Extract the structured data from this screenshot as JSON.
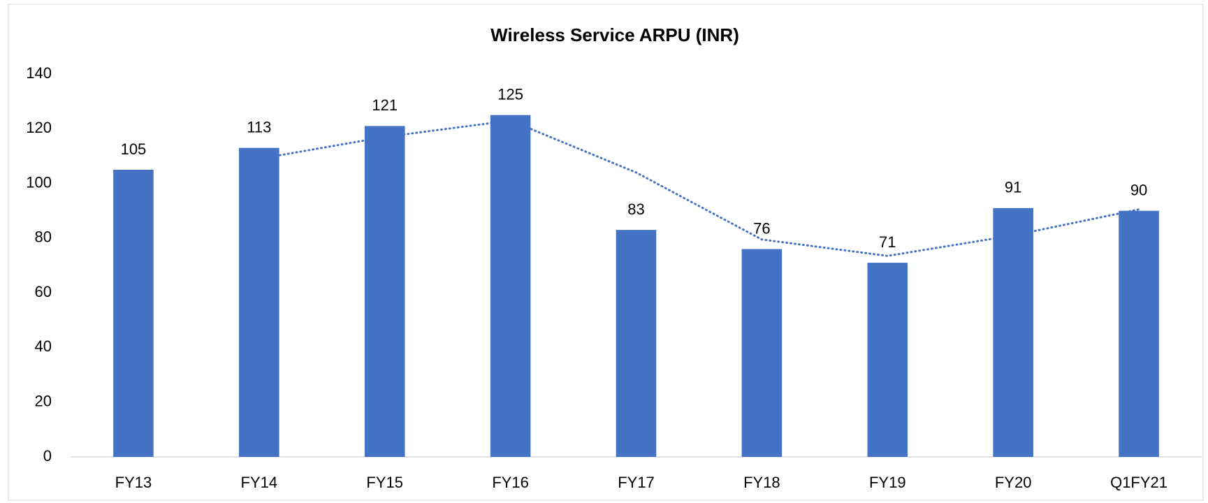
{
  "chart_data": {
    "type": "bar",
    "title": "Wireless Service ARPU (INR)",
    "categories": [
      "FY13",
      "FY14",
      "FY15",
      "FY16",
      "FY17",
      "FY18",
      "FY19",
      "FY20",
      "Q1FY21"
    ],
    "values": [
      105,
      113,
      121,
      125,
      83,
      76,
      71,
      91,
      90
    ],
    "color": "#4472c4",
    "ylim": [
      0,
      140
    ],
    "yticks": [
      0,
      20,
      40,
      60,
      80,
      100,
      120,
      140
    ],
    "grid": false,
    "trendline": {
      "type": "moving_average",
      "period": 2,
      "color": "#4472c4"
    }
  }
}
